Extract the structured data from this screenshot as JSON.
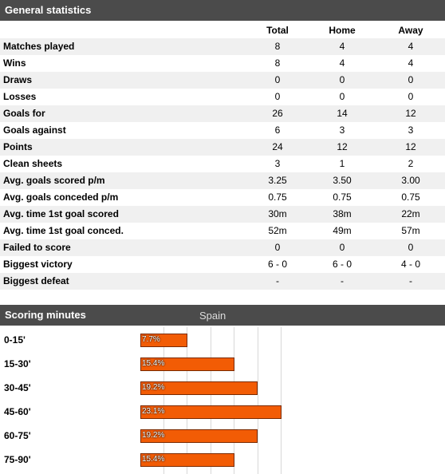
{
  "general_statistics": {
    "title": "General statistics",
    "columns": [
      "Total",
      "Home",
      "Away"
    ],
    "rows": [
      [
        "Matches played",
        "8",
        "4",
        "4"
      ],
      [
        "Wins",
        "8",
        "4",
        "4"
      ],
      [
        "Draws",
        "0",
        "0",
        "0"
      ],
      [
        "Losses",
        "0",
        "0",
        "0"
      ],
      [
        "Goals for",
        "26",
        "14",
        "12"
      ],
      [
        "Goals against",
        "6",
        "3",
        "3"
      ],
      [
        "Points",
        "24",
        "12",
        "12"
      ],
      [
        "Clean sheets",
        "3",
        "1",
        "2"
      ],
      [
        "Avg. goals scored p/m",
        "3.25",
        "3.50",
        "3.00"
      ],
      [
        "Avg. goals conceded p/m",
        "0.75",
        "0.75",
        "0.75"
      ],
      [
        "Avg. time 1st goal scored",
        "30m",
        "38m",
        "22m"
      ],
      [
        "Avg. time 1st goal conced.",
        "52m",
        "49m",
        "57m"
      ],
      [
        "Failed to score",
        "0",
        "0",
        "0"
      ],
      [
        "Biggest victory",
        "6 - 0",
        "6 - 0",
        "4 - 0"
      ],
      [
        "Biggest defeat",
        "-",
        "-",
        "-"
      ]
    ]
  },
  "scoring_minutes": {
    "type": "bar",
    "title": "Scoring minutes",
    "team": "Spain",
    "categories": [
      "0-15'",
      "15-30'",
      "30-45'",
      "45-60'",
      "60-75'",
      "75-90'"
    ],
    "values": [
      7.7,
      15.4,
      19.2,
      23.1,
      19.2,
      15.4
    ],
    "value_labels": [
      "7.7%",
      "15.4%",
      "19.2%",
      "23.1%",
      "19.2%",
      "15.4%"
    ],
    "color": "#f25c05"
  }
}
